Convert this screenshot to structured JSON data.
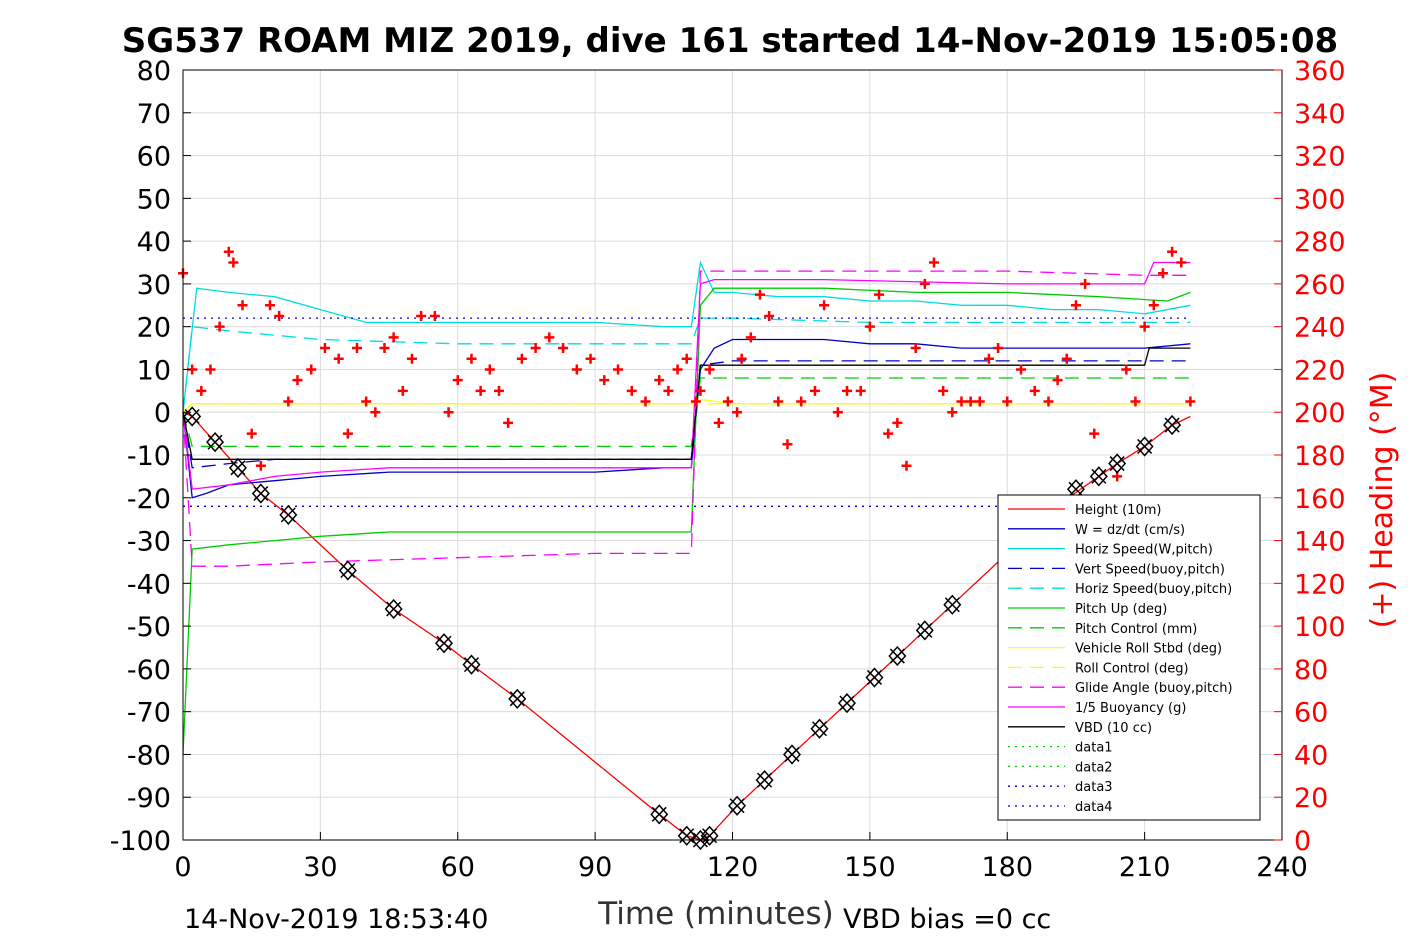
{
  "chart_data": {
    "type": "line",
    "title": "SG537 ROAM MIZ 2019, dive 161 started 14-Nov-2019 15:05:08",
    "xlabel": "Time (minutes)",
    "ylabel_right": "(+) Heading (°M)",
    "xlim": [
      0,
      240
    ],
    "ylim": [
      -100,
      80
    ],
    "ylim_right": [
      0,
      360
    ],
    "x_ticks": [
      "0",
      "30",
      "60",
      "90",
      "120",
      "150",
      "180",
      "210",
      "240"
    ],
    "y_ticks": [
      "80",
      "70",
      "60",
      "50",
      "40",
      "30",
      "20",
      "10",
      "0",
      "-10",
      "-20",
      "-30",
      "-40",
      "-50",
      "-60",
      "-70",
      "-80",
      "-90",
      "-100"
    ],
    "y_ticks_right": [
      "360",
      "340",
      "320",
      "300",
      "280",
      "260",
      "240",
      "220",
      "200",
      "180",
      "160",
      "140",
      "120",
      "100",
      "80",
      "60",
      "40",
      "20",
      "0"
    ],
    "grid": true,
    "legend_position": "bottom-right",
    "footer_left": "14-Nov-2019 18:53:40",
    "footer_right": "VBD bias =0 cc",
    "series": [
      {
        "name": "Height (10m)",
        "color": "#ff0000",
        "style": "solid",
        "x": [
          0,
          2,
          7,
          12,
          17,
          23,
          36,
          46,
          57,
          63,
          73,
          104,
          110,
          113,
          115,
          121,
          127,
          133,
          139,
          145,
          151,
          156,
          162,
          168,
          180,
          192,
          204,
          210,
          216,
          220
        ],
        "y": [
          0,
          -1,
          -7,
          -13,
          -19,
          -24,
          -37,
          -46,
          -54,
          -59,
          -67,
          -94,
          -99,
          -100,
          -99,
          -92,
          -86,
          -80,
          -74,
          -68,
          -62,
          -57,
          -51,
          -45,
          -33,
          -21,
          -12,
          -8,
          -3,
          -1
        ]
      },
      {
        "name": "W = dz/dt (cm/s)",
        "color": "#0000cc",
        "style": "solid",
        "x": [
          0,
          2,
          5,
          10,
          20,
          30,
          45,
          60,
          75,
          90,
          105,
          111,
          113,
          116,
          120,
          130,
          140,
          150,
          160,
          170,
          180,
          190,
          200,
          210,
          220
        ],
        "y": [
          0,
          -20,
          -19,
          -17,
          -16,
          -15,
          -14,
          -14,
          -14,
          -14,
          -13,
          -13,
          10,
          15,
          17,
          17,
          17,
          16,
          16,
          15,
          15,
          15,
          15,
          15,
          16
        ]
      },
      {
        "name": "Horiz Speed(W,pitch)",
        "color": "#00dddd",
        "style": "solid",
        "x": [
          0,
          3,
          10,
          20,
          30,
          40,
          50,
          60,
          75,
          90,
          105,
          111,
          113,
          116,
          120,
          130,
          140,
          150,
          160,
          170,
          180,
          190,
          200,
          210,
          220
        ],
        "y": [
          0,
          29,
          28,
          27,
          24,
          21,
          21,
          21,
          21,
          21,
          20,
          20,
          35,
          28,
          28,
          27,
          27,
          26,
          26,
          25,
          25,
          24,
          24,
          23,
          25
        ]
      },
      {
        "name": "Vert Speed(buoy,pitch)",
        "color": "#0000cc",
        "style": "dash",
        "x": [
          0,
          2,
          10,
          20,
          30,
          60,
          90,
          111,
          113,
          120,
          150,
          180,
          210,
          220
        ],
        "y": [
          0,
          -13,
          -12,
          -11,
          -11,
          -11,
          -11,
          -11,
          11,
          12,
          12,
          12,
          12,
          12
        ]
      },
      {
        "name": "Horiz Speed(buoy,pitch)",
        "color": "#00dddd",
        "style": "dash",
        "x": [
          0,
          2,
          10,
          20,
          30,
          60,
          90,
          111,
          113,
          120,
          150,
          180,
          210,
          220
        ],
        "y": [
          0,
          20,
          19,
          18,
          17,
          16,
          16,
          16,
          22,
          22,
          21,
          21,
          21,
          21
        ]
      },
      {
        "name": "Pitch Up (deg)",
        "color": "#00cc00",
        "style": "solid",
        "x": [
          0,
          2,
          10,
          20,
          30,
          45,
          60,
          75,
          90,
          105,
          111,
          113,
          116,
          120,
          140,
          160,
          180,
          200,
          215,
          220
        ],
        "y": [
          -80,
          -32,
          -31,
          -30,
          -29,
          -28,
          -28,
          -28,
          -28,
          -28,
          -28,
          25,
          29,
          29,
          29,
          28,
          28,
          27,
          26,
          28
        ]
      },
      {
        "name": "Pitch Control (mm)",
        "color": "#00cc00",
        "style": "dash",
        "x": [
          0,
          2,
          60,
          111,
          113,
          220
        ],
        "y": [
          0,
          -8,
          -8,
          -8,
          8,
          8
        ]
      },
      {
        "name": "Vehicle Roll Stbd (deg)",
        "color": "#ffff00",
        "style": "solid",
        "x": [
          0,
          2,
          10,
          20,
          40,
          60,
          80,
          100,
          111,
          113,
          120,
          140,
          160,
          180,
          200,
          210,
          220
        ],
        "y": [
          0,
          2,
          2,
          2,
          2,
          2,
          2,
          2,
          2,
          3,
          2,
          2,
          2,
          2,
          2,
          2,
          2
        ]
      },
      {
        "name": "Roll Control (deg)",
        "color": "#ffff00",
        "style": "dash",
        "x": [
          0,
          2,
          60,
          111,
          113,
          220
        ],
        "y": [
          0,
          2,
          2,
          2,
          2,
          2
        ]
      },
      {
        "name": "Glide Angle (buoy,pitch)",
        "color": "#ff00ff",
        "style": "dash",
        "x": [
          0,
          2,
          10,
          30,
          60,
          90,
          111,
          113,
          116,
          140,
          180,
          210,
          220
        ],
        "y": [
          0,
          -36,
          -36,
          -35,
          -34,
          -33,
          -33,
          33,
          33,
          33,
          33,
          32,
          32
        ]
      },
      {
        "name": "1/5 Buoyancy (g)",
        "color": "#ff00ff",
        "style": "solid",
        "x": [
          0,
          2,
          10,
          20,
          30,
          45,
          60,
          90,
          111,
          113,
          116,
          140,
          180,
          210,
          212,
          220
        ],
        "y": [
          0,
          -18,
          -17,
          -15,
          -14,
          -13,
          -13,
          -13,
          -13,
          30,
          31,
          31,
          30,
          30,
          35,
          35
        ]
      },
      {
        "name": "VBD (10 cc)",
        "color": "#000000",
        "style": "solid",
        "x": [
          0,
          2,
          60,
          111,
          113,
          210,
          211,
          220
        ],
        "y": [
          0,
          -11,
          -11,
          -11,
          11,
          11,
          15,
          15
        ]
      },
      {
        "name": "data1",
        "color": "#00cc00",
        "style": "dot",
        "x": [],
        "y": []
      },
      {
        "name": "data2",
        "color": "#00cc00",
        "style": "dot",
        "x": [],
        "y": []
      },
      {
        "name": "data3",
        "color": "#0000cc",
        "style": "dot",
        "x": [
          0,
          220
        ],
        "y": [
          -22,
          -22
        ]
      },
      {
        "name": "data4",
        "color": "#0000cc",
        "style": "dot",
        "x": [
          0,
          220
        ],
        "y": [
          22,
          22
        ]
      }
    ],
    "heading": {
      "color": "#ff0000",
      "marker": "+",
      "axis": "right",
      "x": [
        0,
        2,
        4,
        6,
        8,
        10,
        11,
        13,
        15,
        17,
        19,
        21,
        23,
        25,
        28,
        31,
        34,
        36,
        38,
        40,
        42,
        44,
        46,
        48,
        50,
        52,
        55,
        58,
        60,
        63,
        65,
        67,
        69,
        71,
        74,
        77,
        80,
        83,
        86,
        89,
        92,
        95,
        98,
        101,
        104,
        106,
        108,
        110,
        112,
        113,
        115,
        117,
        119,
        121,
        122,
        124,
        126,
        128,
        130,
        132,
        135,
        138,
        140,
        143,
        145,
        148,
        150,
        152,
        154,
        156,
        158,
        160,
        162,
        164,
        166,
        168,
        170,
        172,
        174,
        176,
        178,
        180,
        183,
        186,
        189,
        191,
        193,
        195,
        197,
        199,
        201,
        204,
        206,
        208,
        210,
        212,
        214,
        216,
        218,
        220
      ],
      "y": [
        265,
        220,
        210,
        220,
        240,
        275,
        270,
        250,
        190,
        175,
        250,
        245,
        205,
        215,
        220,
        230,
        225,
        190,
        230,
        205,
        200,
        230,
        235,
        210,
        225,
        245,
        245,
        200,
        215,
        225,
        210,
        220,
        210,
        195,
        225,
        230,
        235,
        230,
        220,
        225,
        215,
        220,
        210,
        205,
        215,
        210,
        220,
        225,
        205,
        210,
        220,
        195,
        205,
        200,
        225,
        235,
        255,
        245,
        205,
        185,
        205,
        210,
        250,
        200,
        210,
        210,
        240,
        255,
        190,
        195,
        175,
        230,
        260,
        270,
        210,
        200,
        205,
        205,
        205,
        225,
        230,
        205,
        220,
        210,
        205,
        215,
        225,
        250,
        260,
        190,
        155,
        170,
        220,
        205,
        240,
        250,
        265,
        275,
        270,
        205
      ]
    },
    "markers": {
      "shape": "diamond-cross",
      "color": "#000000",
      "x": [
        2,
        7,
        12,
        17,
        23,
        36,
        46,
        57,
        63,
        73,
        104,
        110,
        113,
        115,
        121,
        127,
        133,
        139,
        145,
        151,
        156,
        162,
        168,
        195,
        200,
        204,
        210,
        216
      ],
      "y": [
        -1,
        -7,
        -13,
        -19,
        -24,
        -37,
        -46,
        -54,
        -59,
        -67,
        -94,
        -99,
        -100,
        -99,
        -92,
        -86,
        -80,
        -74,
        -68,
        -62,
        -57,
        -51,
        -45,
        -18,
        -15,
        -12,
        -8,
        -3
      ]
    }
  }
}
